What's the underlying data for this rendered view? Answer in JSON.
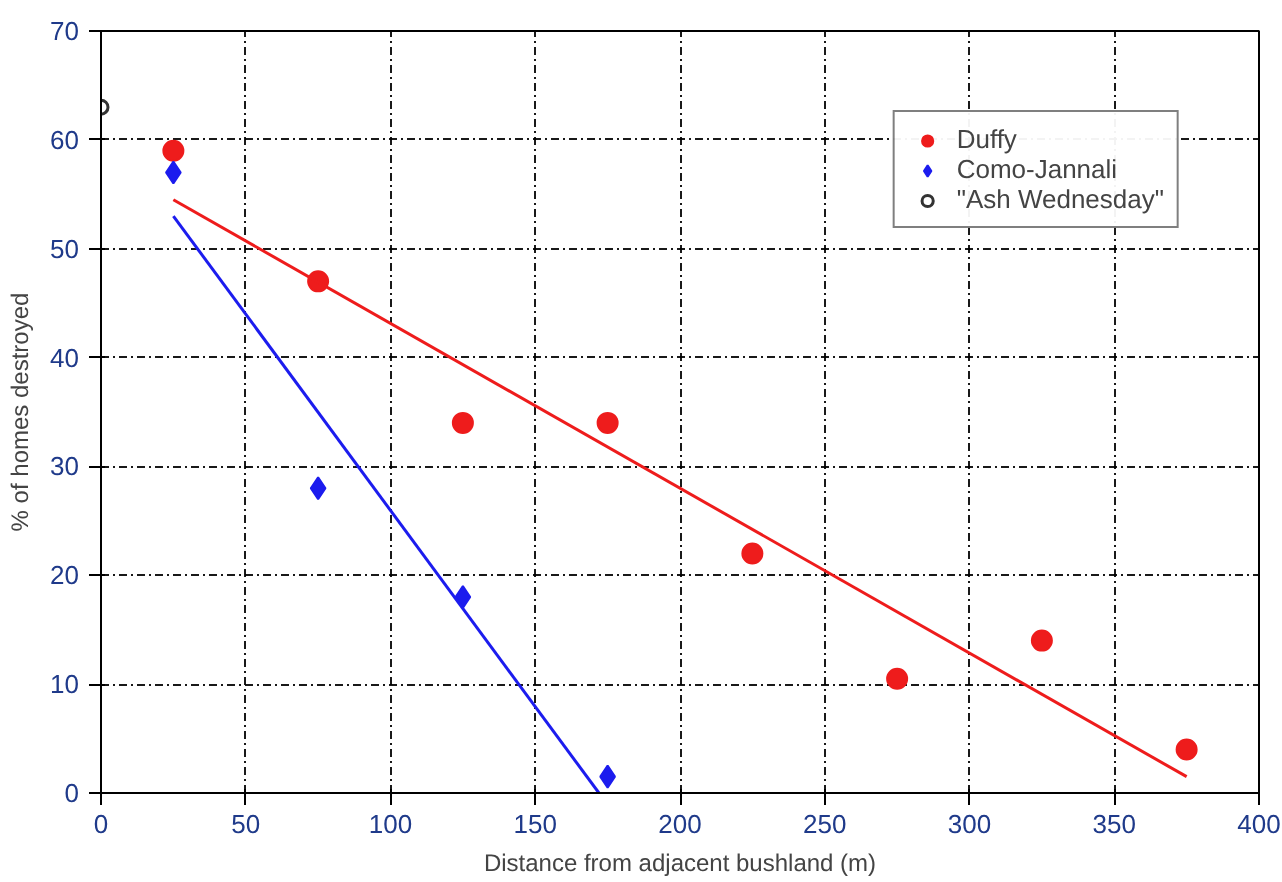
{
  "chart_data": {
    "type": "scatter",
    "xlabel": "Distance from adjacent bushland (m)",
    "ylabel": "% of homes destroyed",
    "xlim": [
      0,
      400
    ],
    "xticks": [
      0,
      50,
      100,
      150,
      200,
      250,
      300,
      350,
      400
    ],
    "ylim": [
      0,
      70
    ],
    "yticks": [
      0,
      10,
      20,
      30,
      40,
      50,
      60,
      70
    ],
    "grid": true,
    "legend": "top right",
    "series": [
      {
        "name": "Duffy",
        "color": "#ee1c1c",
        "marker": "circle",
        "x": [
          25,
          75,
          125,
          175,
          225,
          275,
          325,
          375
        ],
        "values": [
          59,
          47,
          34,
          34,
          22,
          10.5,
          14,
          4
        ]
      },
      {
        "name": "Como-Jannali",
        "color": "#1c1cee",
        "marker": "diamond",
        "x": [
          25,
          75,
          125,
          175
        ],
        "values": [
          57,
          28,
          18,
          1.5
        ]
      },
      {
        "name": "\"Ash Wednesday\"",
        "color": "#333333",
        "marker": "circle_open",
        "x": [
          0
        ],
        "values": [
          63
        ]
      },
      {
        "type": "line",
        "color": "#ee1c1c",
        "x": [
          25,
          375
        ],
        "values": [
          54.5,
          1.5
        ]
      },
      {
        "type": "line",
        "color": "#1c1cee",
        "x": [
          25,
          172
        ],
        "values": [
          53,
          0
        ]
      }
    ]
  }
}
